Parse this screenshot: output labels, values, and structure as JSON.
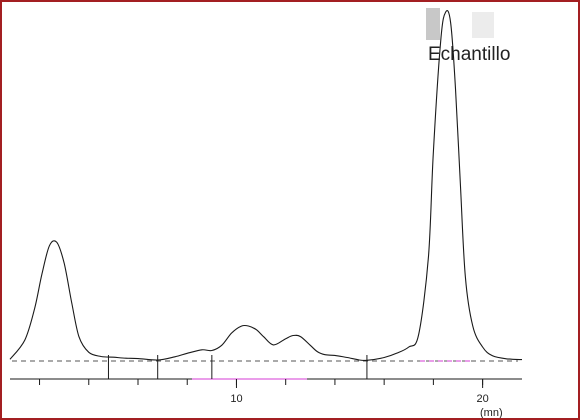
{
  "chart_data": {
    "type": "line",
    "annotation": "Echantillo",
    "xlabel": "(mn)",
    "ylabel": "",
    "xlim": [
      0.8,
      21.6
    ],
    "ylim": [
      0,
      100
    ],
    "x_ticks": [
      10,
      20
    ],
    "x_tick_labels": [
      "10",
      "20"
    ],
    "grid": false,
    "legend": "none",
    "baseline_y": 0,
    "integration_marks": [
      4.8,
      6.8,
      9.0,
      15.3
    ],
    "series": [
      {
        "name": "",
        "x": [
          0.8,
          1.4,
          1.8,
          2.1,
          2.4,
          2.7,
          3.0,
          3.3,
          3.6,
          4.0,
          4.5,
          5.0,
          5.5,
          6.0,
          6.8,
          7.5,
          8.0,
          8.6,
          9.0,
          9.4,
          9.8,
          10.2,
          10.5,
          10.8,
          11.1,
          11.5,
          12.0,
          12.3,
          12.6,
          13.0,
          13.3,
          13.6,
          14.0,
          14.5,
          15.0,
          15.3,
          16.0,
          16.5,
          17.0,
          17.4,
          17.8,
          18.0,
          18.3,
          18.5,
          18.7,
          18.9,
          19.1,
          19.3,
          19.6,
          20.0,
          20.4,
          21.0,
          21.6
        ],
        "y": [
          0.5,
          6,
          15,
          25,
          33,
          34,
          28,
          17,
          7,
          2.5,
          1.3,
          1.1,
          0.8,
          0.7,
          0.3,
          1.2,
          2.2,
          3.2,
          3.0,
          4.5,
          8,
          10,
          10,
          9,
          7,
          4.6,
          6.4,
          7.3,
          7.0,
          4.5,
          2.6,
          1.8,
          1.6,
          1.0,
          0.3,
          0.2,
          1.0,
          2.2,
          4.0,
          7.5,
          30,
          60,
          92,
          100,
          97,
          78,
          50,
          24,
          10,
          4,
          1.5,
          0.6,
          0.4
        ]
      }
    ]
  },
  "colors": {
    "frame": "#a31f22",
    "trace": "#1a1a1a",
    "baseline": "#555555",
    "baseline_accent": "#d43bd4",
    "axis": "#1a1a1a"
  }
}
